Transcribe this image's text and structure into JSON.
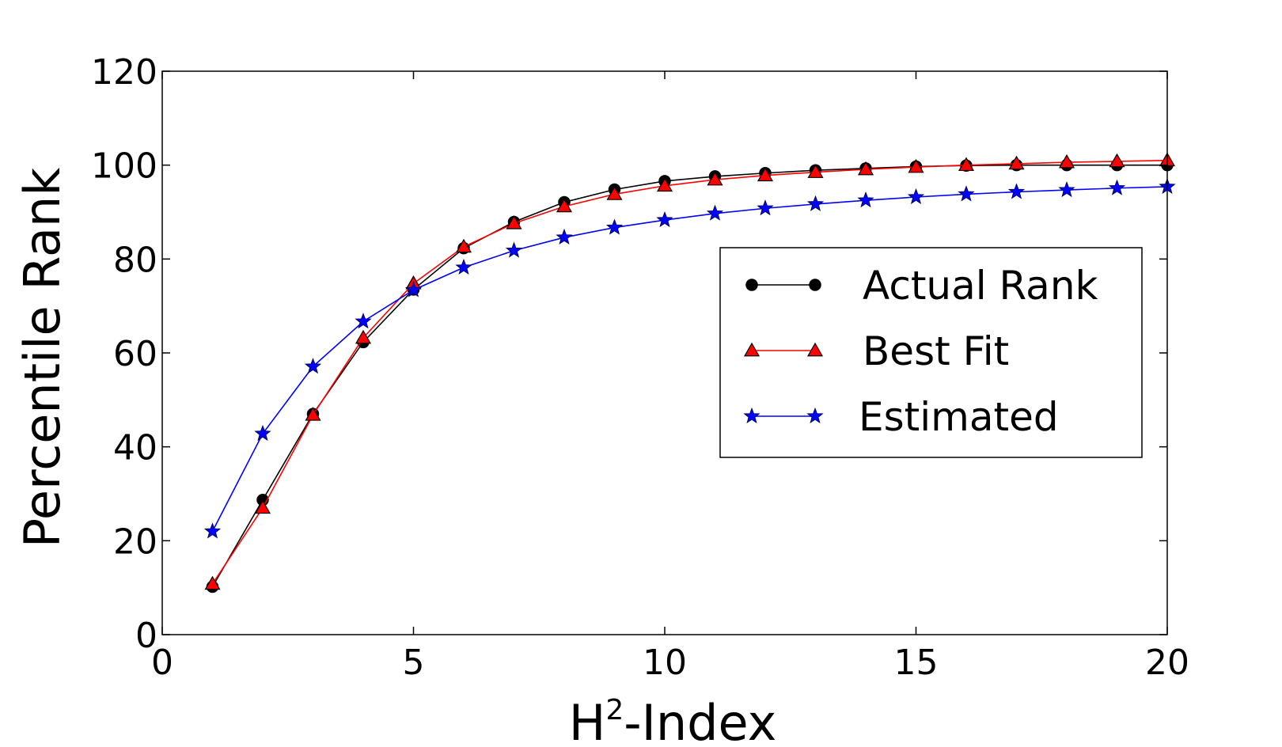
{
  "chart_data": {
    "type": "line",
    "title": "",
    "xlabel": "H",
    "xlabel_superscript": "2",
    "xlabel_suffix": "-Index",
    "ylabel": "Percentile Rank",
    "xlim": [
      0,
      20
    ],
    "ylim": [
      0,
      120
    ],
    "x_ticks": [
      "0",
      "5",
      "10",
      "15",
      "20"
    ],
    "y_ticks": [
      "0",
      "20",
      "40",
      "60",
      "80",
      "100",
      "120"
    ],
    "grid": false,
    "legend_position": "center-right",
    "x": [
      1,
      2,
      3,
      4,
      5,
      6,
      7,
      8,
      9,
      10,
      11,
      12,
      13,
      14,
      15,
      16,
      17,
      18,
      19,
      20
    ],
    "series": [
      {
        "name": "Actual Rank",
        "color": "#000000",
        "marker": "circle",
        "values": [
          10.2,
          28.7,
          47.0,
          62.3,
          73.5,
          82.3,
          87.9,
          92.1,
          94.8,
          96.6,
          97.6,
          98.3,
          98.9,
          99.3,
          99.7,
          99.9,
          100.0,
          100.0,
          100.0,
          100.0
        ]
      },
      {
        "name": "Best Fit",
        "color": "#ff0000",
        "marker": "triangle",
        "values": [
          10.8,
          27.0,
          46.8,
          63.2,
          74.8,
          82.6,
          87.6,
          91.2,
          93.8,
          95.6,
          96.9,
          97.8,
          98.5,
          99.1,
          99.6,
          100.0,
          100.3,
          100.6,
          100.8,
          101.0
        ]
      },
      {
        "name": "Estimated",
        "color": "#0000ff",
        "marker": "star",
        "values": [
          22.0,
          42.8,
          57.1,
          66.7,
          73.4,
          78.2,
          81.8,
          84.6,
          86.7,
          88.3,
          89.7,
          90.8,
          91.7,
          92.5,
          93.2,
          93.8,
          94.3,
          94.7,
          95.1,
          95.4
        ]
      }
    ]
  }
}
